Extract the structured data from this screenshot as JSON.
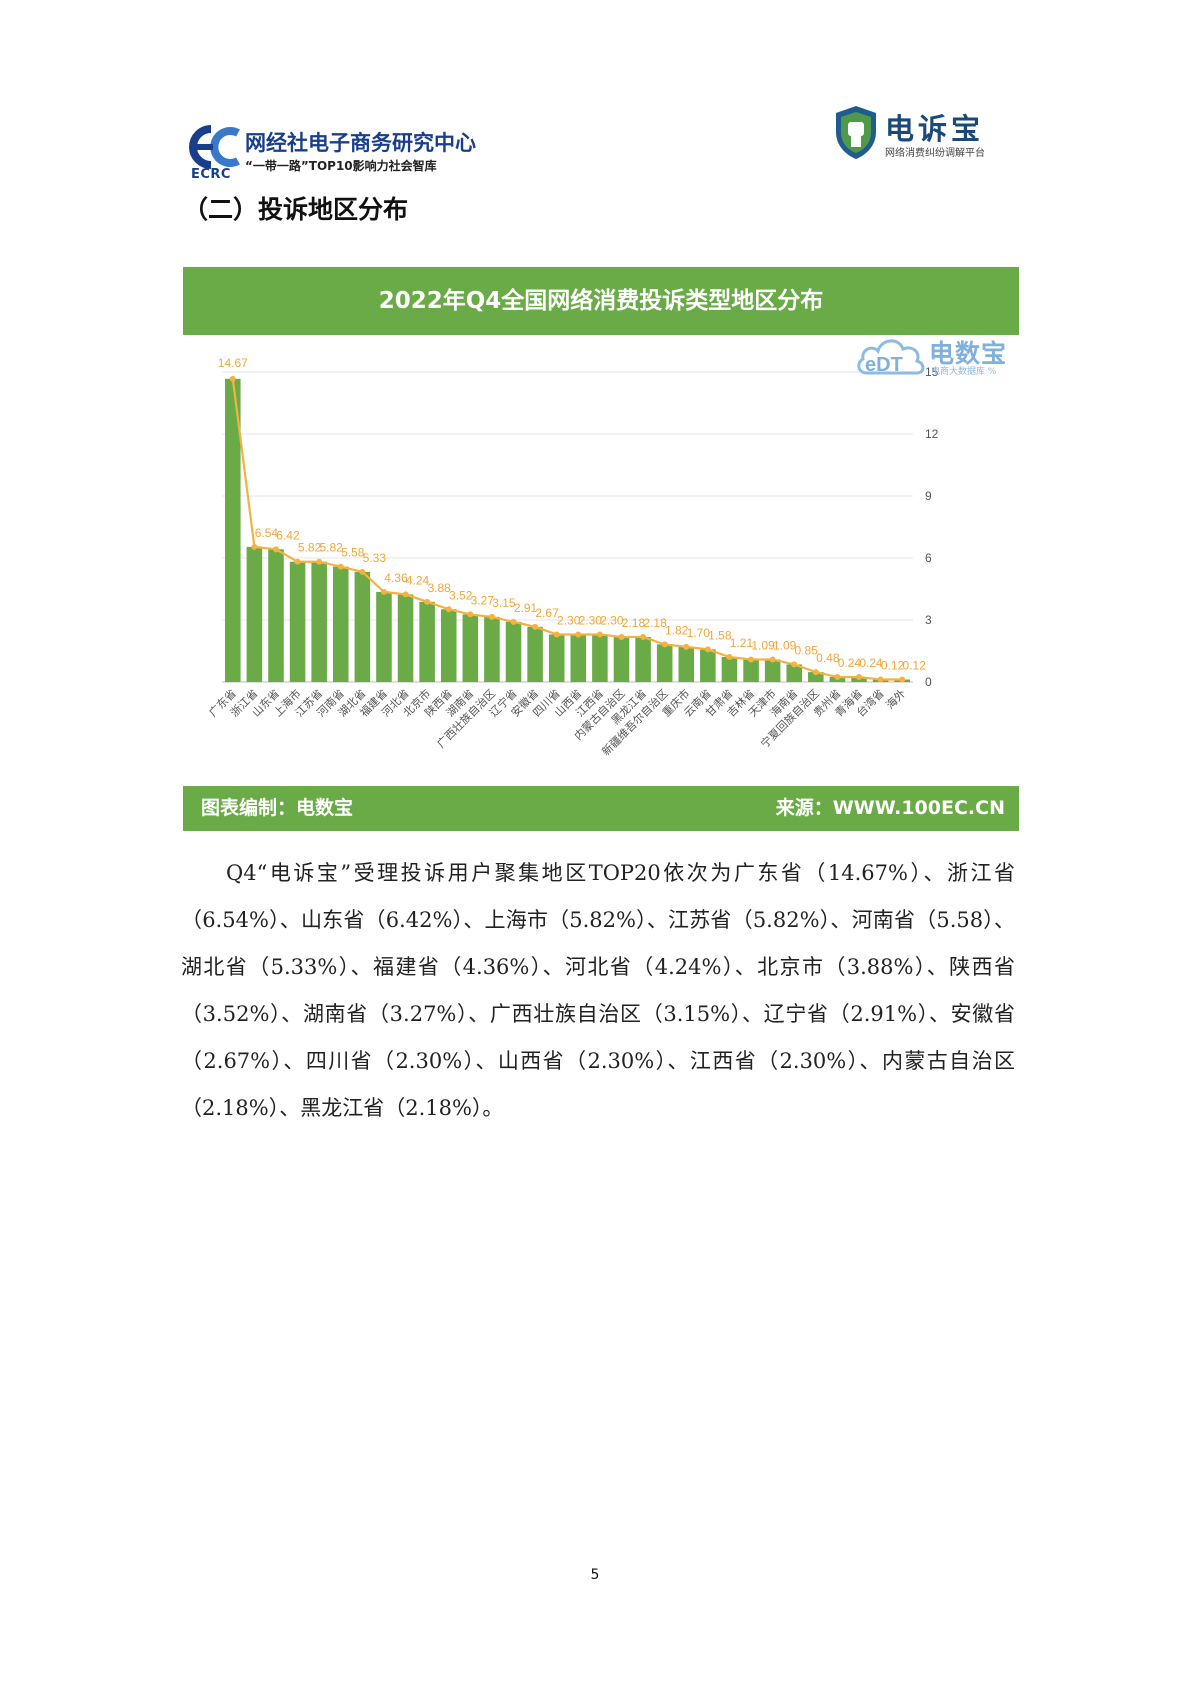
{
  "header": {
    "left_logo": {
      "abbr": "ECRC",
      "name": "网经社电子商务研究中心",
      "slogan": "“一带一路”TOP10影响力社会智库"
    },
    "right_logo": {
      "name": "电诉宝",
      "subtitle": "网络消费纠纷调解平台"
    }
  },
  "section_heading": "（二）投诉地区分布",
  "chart_card": {
    "title": "2022年Q4全国网络消费投诉类型地区分布",
    "credit": "图表编制：电数宝",
    "source": "来源：WWW.100EC.CN",
    "watermark": {
      "name": "电数宝",
      "sub": "电商大数据库",
      "percent": "%"
    },
    "colors": {
      "bar": "#6aab48",
      "line": "#f4b242",
      "band": "#6aab48"
    }
  },
  "chart_data": {
    "type": "bar",
    "title": "2022年Q4全国网络消费投诉类型地区分布",
    "categories": [
      "广东省",
      "浙江省",
      "山东省",
      "上海市",
      "江苏省",
      "河南省",
      "湖北省",
      "福建省",
      "河北省",
      "北京市",
      "陕西省",
      "湖南省",
      "广西壮族自治区",
      "辽宁省",
      "安徽省",
      "四川省",
      "山西省",
      "江西省",
      "内蒙古自治区",
      "黑龙江省",
      "新疆维吾尔自治区",
      "重庆市",
      "云南省",
      "甘肃省",
      "吉林省",
      "天津市",
      "海南省",
      "宁夏回族自治区",
      "贵州省",
      "青海省",
      "台湾省",
      "海外"
    ],
    "series": [
      {
        "type": "bar",
        "values": [
          14.67,
          6.54,
          6.42,
          5.82,
          5.82,
          5.58,
          5.33,
          4.36,
          4.24,
          3.88,
          3.52,
          3.27,
          3.15,
          2.91,
          2.67,
          2.3,
          2.3,
          2.3,
          2.18,
          2.18,
          1.82,
          1.7,
          1.58,
          1.21,
          1.09,
          1.09,
          0.85,
          0.48,
          0.24,
          0.24,
          0.12,
          0.12
        ]
      },
      {
        "type": "line",
        "values": [
          14.67,
          6.54,
          6.42,
          5.82,
          5.82,
          5.58,
          5.33,
          4.36,
          4.24,
          3.88,
          3.52,
          3.27,
          3.15,
          2.91,
          2.67,
          2.3,
          2.3,
          2.3,
          2.18,
          2.18,
          1.82,
          1.7,
          1.58,
          1.21,
          1.09,
          1.09,
          0.85,
          0.48,
          0.24,
          0.24,
          0.12,
          0.12
        ],
        "labels": [
          "14.67",
          "6.54",
          "6.42",
          "5.82",
          "5.82",
          "5.58",
          "5.33",
          "4.36",
          "4.24",
          "3.88",
          "3.52",
          "3.27",
          "3.15",
          "2.91",
          "2.67",
          "2.30",
          "2.30",
          "2.30",
          "2.18",
          "2.18",
          "1.82",
          "1.70",
          "1.58",
          "1.21",
          "1.09",
          "1.09",
          "0.85",
          "0.48",
          "0.24",
          "0.24",
          "0.12",
          "0.12"
        ]
      }
    ],
    "y_ticks": [
      "0",
      "3",
      "6",
      "9",
      "12",
      "15"
    ],
    "ylim": [
      0,
      15
    ],
    "y_axis_side": "right",
    "grid": true
  },
  "body_paragraph": "Q4“电诉宝”受理投诉用户聚集地区TOP20依次为广东省（14.67%）、浙江省（6.54%）、山东省（6.42%）、上海市（5.82%）、江苏省（5.82%）、河南省（5.58）、湖北省（5.33%）、福建省（4.36%）、河北省（4.24%）、北京市（3.88%）、陕西省（3.52%）、湖南省（3.27%）、广西壮族自治区（3.15%）、辽宁省（2.91%）、安徽省（2.67%）、四川省（2.30%）、山西省（2.30%）、江西省（2.30%）、内蒙古自治区（2.18%）、黑龙江省（2.18%）。",
  "page_number": "5"
}
